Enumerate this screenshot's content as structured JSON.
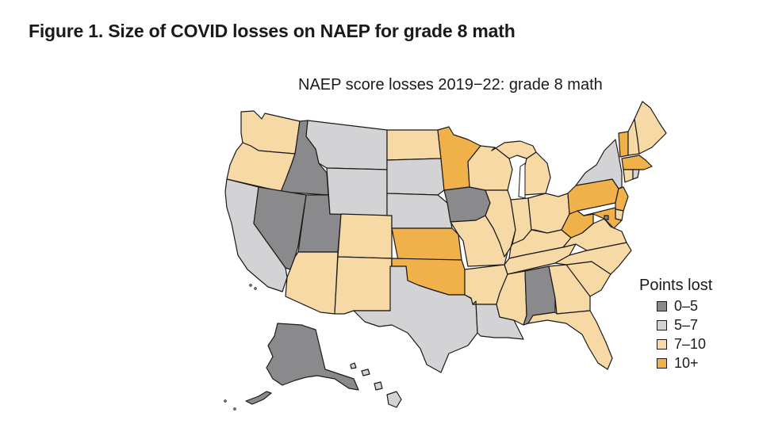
{
  "figure_title": "Figure 1. Size of COVID losses on NAEP for grade 8 math",
  "map_title": "NAEP score losses 2019−22: grade 8 math",
  "colors": {
    "0-5": "#8a8a8c",
    "5-7": "#d3d3d5",
    "7-10": "#f6d9a4",
    "10+": "#f0b14a",
    "stroke": "#1a1a1a"
  },
  "legend": {
    "title": "Points lost",
    "items": [
      {
        "key": "0-5",
        "label": "0–5"
      },
      {
        "key": "5-7",
        "label": "5–7"
      },
      {
        "key": "7-10",
        "label": "7–10"
      },
      {
        "key": "10+",
        "label": "10+"
      }
    ]
  },
  "states": [
    {
      "id": "WA",
      "name": "Washington",
      "bin": "7-10"
    },
    {
      "id": "OR",
      "name": "Oregon",
      "bin": "7-10"
    },
    {
      "id": "CA",
      "name": "California",
      "bin": "5-7"
    },
    {
      "id": "ID",
      "name": "Idaho",
      "bin": "0-5"
    },
    {
      "id": "NV",
      "name": "Nevada",
      "bin": "0-5"
    },
    {
      "id": "UT",
      "name": "Utah",
      "bin": "0-5"
    },
    {
      "id": "AZ",
      "name": "Arizona",
      "bin": "7-10"
    },
    {
      "id": "MT",
      "name": "Montana",
      "bin": "5-7"
    },
    {
      "id": "WY",
      "name": "Wyoming",
      "bin": "5-7"
    },
    {
      "id": "CO",
      "name": "Colorado",
      "bin": "7-10"
    },
    {
      "id": "NM",
      "name": "New Mexico",
      "bin": "7-10"
    },
    {
      "id": "ND",
      "name": "North Dakota",
      "bin": "7-10"
    },
    {
      "id": "SD",
      "name": "South Dakota",
      "bin": "5-7"
    },
    {
      "id": "NE",
      "name": "Nebraska",
      "bin": "5-7"
    },
    {
      "id": "KS",
      "name": "Kansas",
      "bin": "10+"
    },
    {
      "id": "OK",
      "name": "Oklahoma",
      "bin": "10+"
    },
    {
      "id": "TX",
      "name": "Texas",
      "bin": "5-7"
    },
    {
      "id": "MN",
      "name": "Minnesota",
      "bin": "10+"
    },
    {
      "id": "IA",
      "name": "Iowa",
      "bin": "0-5"
    },
    {
      "id": "MO",
      "name": "Missouri",
      "bin": "7-10"
    },
    {
      "id": "AR",
      "name": "Arkansas",
      "bin": "7-10"
    },
    {
      "id": "LA",
      "name": "Louisiana",
      "bin": "5-7"
    },
    {
      "id": "WI",
      "name": "Wisconsin",
      "bin": "7-10"
    },
    {
      "id": "IL",
      "name": "Illinois",
      "bin": "7-10"
    },
    {
      "id": "MI",
      "name": "Michigan",
      "bin": "7-10"
    },
    {
      "id": "IN",
      "name": "Indiana",
      "bin": "7-10"
    },
    {
      "id": "OH",
      "name": "Ohio",
      "bin": "7-10"
    },
    {
      "id": "KY",
      "name": "Kentucky",
      "bin": "7-10"
    },
    {
      "id": "TN",
      "name": "Tennessee",
      "bin": "7-10"
    },
    {
      "id": "MS",
      "name": "Mississippi",
      "bin": "7-10"
    },
    {
      "id": "AL",
      "name": "Alabama",
      "bin": "0-5"
    },
    {
      "id": "GA",
      "name": "Georgia",
      "bin": "7-10"
    },
    {
      "id": "FL",
      "name": "Florida",
      "bin": "7-10"
    },
    {
      "id": "SC",
      "name": "South Carolina",
      "bin": "7-10"
    },
    {
      "id": "NC",
      "name": "North Carolina",
      "bin": "7-10"
    },
    {
      "id": "VA",
      "name": "Virginia",
      "bin": "7-10"
    },
    {
      "id": "WV",
      "name": "West Virginia",
      "bin": "10+"
    },
    {
      "id": "PA",
      "name": "Pennsylvania",
      "bin": "10+"
    },
    {
      "id": "NY",
      "name": "New York",
      "bin": "5-7"
    },
    {
      "id": "VT",
      "name": "Vermont",
      "bin": "10+"
    },
    {
      "id": "NH",
      "name": "New Hampshire",
      "bin": "7-10"
    },
    {
      "id": "ME",
      "name": "Maine",
      "bin": "7-10"
    },
    {
      "id": "MA",
      "name": "Massachusetts",
      "bin": "10+"
    },
    {
      "id": "RI",
      "name": "Rhode Island",
      "bin": "5-7"
    },
    {
      "id": "CT",
      "name": "Connecticut",
      "bin": "7-10"
    },
    {
      "id": "NJ",
      "name": "New Jersey",
      "bin": "10+"
    },
    {
      "id": "DE",
      "name": "Delaware",
      "bin": "7-10"
    },
    {
      "id": "MD",
      "name": "Maryland",
      "bin": "10+"
    },
    {
      "id": "DC",
      "name": "District of Columbia",
      "bin": "0-5"
    },
    {
      "id": "AK",
      "name": "Alaska",
      "bin": "0-5"
    },
    {
      "id": "HI",
      "name": "Hawaii",
      "bin": "5-7"
    }
  ]
}
